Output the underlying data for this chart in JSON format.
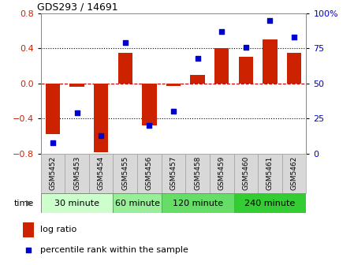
{
  "title": "GDS293 / 14691",
  "samples": [
    "GSM5452",
    "GSM5453",
    "GSM5454",
    "GSM5455",
    "GSM5456",
    "GSM5457",
    "GSM5458",
    "GSM5459",
    "GSM5460",
    "GSM5461",
    "GSM5462"
  ],
  "log_ratio": [
    -0.58,
    -0.04,
    -0.78,
    0.35,
    -0.48,
    -0.03,
    0.1,
    0.4,
    0.3,
    0.5,
    0.35
  ],
  "percentile": [
    8,
    29,
    13,
    79,
    20,
    30,
    68,
    87,
    76,
    95,
    83
  ],
  "bar_color": "#cc2200",
  "dot_color": "#0000cc",
  "ylim": [
    -0.8,
    0.8
  ],
  "ylim_right": [
    0,
    100
  ],
  "yticks_left": [
    -0.8,
    -0.4,
    0.0,
    0.4,
    0.8
  ],
  "yticks_right": [
    0,
    25,
    50,
    75,
    100
  ],
  "ytick_labels_right": [
    "0",
    "25",
    "50",
    "75",
    "100%"
  ],
  "groups": [
    {
      "label": "30 minute",
      "start": 0,
      "end": 3,
      "color": "#ccffcc"
    },
    {
      "label": "60 minute",
      "start": 3,
      "end": 5,
      "color": "#99ee99"
    },
    {
      "label": "120 minute",
      "start": 5,
      "end": 8,
      "color": "#66dd66"
    },
    {
      "label": "240 minute",
      "start": 8,
      "end": 11,
      "color": "#33cc33"
    }
  ],
  "legend_bar_label": "log ratio",
  "legend_dot_label": "percentile rank within the sample",
  "time_label": "time",
  "grid_color": "#000000",
  "zero_line_color": "#cc0000",
  "xtick_bg": "#d8d8d8"
}
